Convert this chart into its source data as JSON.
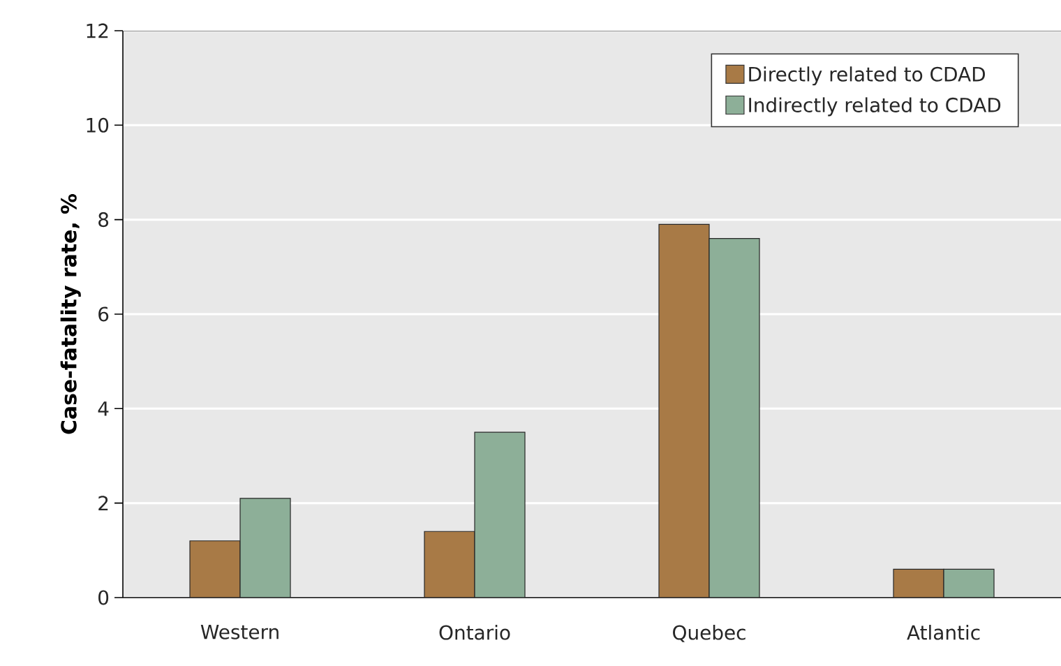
{
  "chart_data": {
    "type": "bar",
    "ylabel": "Case-fatality rate, %",
    "categories": [
      "Western",
      "Ontario",
      "Quebec",
      "Atlantic"
    ],
    "series": [
      {
        "name": "Directly related to CDAD",
        "color": "#a87a46",
        "values": [
          1.2,
          1.4,
          7.9,
          0.6
        ]
      },
      {
        "name": "Indirectly related to CDAD",
        "color": "#8daf98",
        "values": [
          2.1,
          3.5,
          7.6,
          0.6
        ]
      }
    ],
    "ylim": [
      0,
      12
    ],
    "yticks": [
      0,
      2,
      4,
      6,
      8,
      10,
      12
    ],
    "grid": "y",
    "legend": "top right"
  }
}
